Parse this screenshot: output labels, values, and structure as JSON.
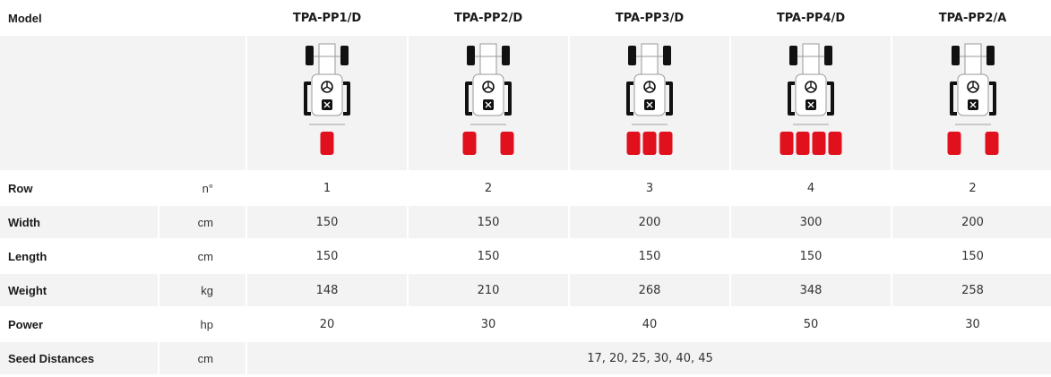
{
  "header": {
    "model_label": "Model",
    "models": [
      "TPA-PP1/D",
      "TPA-PP2/D",
      "TPA-PP3/D",
      "TPA-PP4/D",
      "TPA-PP2/A"
    ]
  },
  "diagrams": [
    {
      "rows": 1,
      "icon": "tractor-planter-1-row-icon",
      "spread": "narrow"
    },
    {
      "rows": 2,
      "icon": "tractor-planter-2-row-icon",
      "spread": "wide"
    },
    {
      "rows": 3,
      "icon": "tractor-planter-3-row-icon",
      "spread": "narrow"
    },
    {
      "rows": 4,
      "icon": "tractor-planter-4-row-icon",
      "spread": "narrow"
    },
    {
      "rows": 2,
      "icon": "tractor-planter-2-row-icon",
      "spread": "wide"
    }
  ],
  "colors": {
    "row_unit": "#e0101c",
    "tractor_outline": "#111111",
    "row_bg_grey": "#f3f3f3"
  },
  "rows": [
    {
      "label": "Row",
      "unit": "n°",
      "values": [
        "1",
        "2",
        "3",
        "4",
        "2"
      ]
    },
    {
      "label": "Width",
      "unit": "cm",
      "values": [
        "150",
        "150",
        "200",
        "300",
        "200"
      ]
    },
    {
      "label": "Length",
      "unit": "cm",
      "values": [
        "150",
        "150",
        "150",
        "150",
        "150"
      ]
    },
    {
      "label": "Weight",
      "unit": "kg",
      "values": [
        "148",
        "210",
        "268",
        "348",
        "258"
      ]
    },
    {
      "label": "Power",
      "unit": "hp",
      "values": [
        "20",
        "30",
        "40",
        "50",
        "30"
      ]
    }
  ],
  "seed": {
    "label": "Seed Distances",
    "unit": "cm",
    "value": "17, 20, 25, 30, 40, 45"
  }
}
